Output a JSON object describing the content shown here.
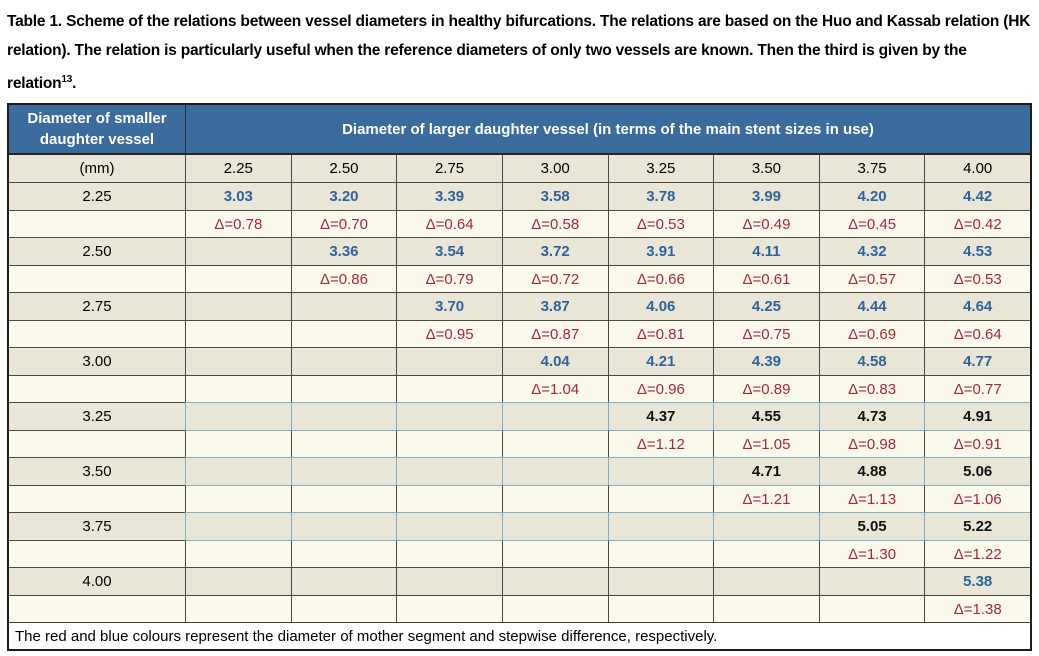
{
  "caption": {
    "prefix": "Table 1. Scheme of the relations between vessel diameters in healthy bifurcations. The relations are based on the Huo and Kassab relation (HK relation). The relation is particularly useful when the reference diameters of only two vessels are known. Then the third is given by the relation",
    "superscript": "13",
    "suffix": "."
  },
  "table": {
    "corner_header": "Diameter of smaller daughter vessel",
    "main_header": "Diameter of larger daughter vessel (in terms of the main stent sizes in use)",
    "unit_label": "(mm)",
    "column_headers": [
      "2.25",
      "2.50",
      "2.75",
      "3.00",
      "3.25",
      "3.50",
      "3.75",
      "4.00"
    ],
    "rows": [
      {
        "label": "2.25",
        "start_index": 0,
        "value_style": "blue",
        "border_style": "dark",
        "values": [
          "3.03",
          "3.20",
          "3.39",
          "3.58",
          "3.78",
          "3.99",
          "4.20",
          "4.42"
        ],
        "deltas": [
          "Δ=0.78",
          "Δ=0.70",
          "Δ=0.64",
          "Δ=0.58",
          "Δ=0.53",
          "Δ=0.49",
          "Δ=0.45",
          "Δ=0.42"
        ]
      },
      {
        "label": "2.50",
        "start_index": 1,
        "value_style": "blue",
        "border_style": "dark",
        "values": [
          "3.36",
          "3.54",
          "3.72",
          "3.91",
          "4.11",
          "4.32",
          "4.53"
        ],
        "deltas": [
          "Δ=0.86",
          "Δ=0.79",
          "Δ=0.72",
          "Δ=0.66",
          "Δ=0.61",
          "Δ=0.57",
          "Δ=0.53"
        ]
      },
      {
        "label": "2.75",
        "start_index": 2,
        "value_style": "blue",
        "border_style": "dark",
        "values": [
          "3.70",
          "3.87",
          "4.06",
          "4.25",
          "4.44",
          "4.64"
        ],
        "deltas": [
          "Δ=0.95",
          "Δ=0.87",
          "Δ=0.81",
          "Δ=0.75",
          "Δ=0.69",
          "Δ=0.64"
        ]
      },
      {
        "label": "3.00",
        "start_index": 3,
        "value_style": "blue",
        "border_style": "dark",
        "values": [
          "4.04",
          "4.21",
          "4.39",
          "4.58",
          "4.77"
        ],
        "deltas": [
          "Δ=1.04",
          "Δ=0.96",
          "Δ=0.89",
          "Δ=0.83",
          "Δ=0.77"
        ]
      },
      {
        "label": "3.25",
        "start_index": 4,
        "value_style": "black",
        "border_style": "light-blue",
        "values": [
          "4.37",
          "4.55",
          "4.73",
          "4.91"
        ],
        "deltas": [
          "Δ=1.12",
          "Δ=1.05",
          "Δ=0.98",
          "Δ=0.91"
        ]
      },
      {
        "label": "3.50",
        "start_index": 5,
        "value_style": "black",
        "border_style": "light-blue",
        "values": [
          "4.71",
          "4.88",
          "5.06"
        ],
        "deltas": [
          "Δ=1.21",
          "Δ=1.13",
          "Δ=1.06"
        ]
      },
      {
        "label": "3.75",
        "start_index": 6,
        "value_style": "black",
        "border_style": "light-blue",
        "values": [
          "5.05",
          "5.22"
        ],
        "deltas": [
          "Δ=1.30",
          "Δ=1.22"
        ]
      },
      {
        "label": "4.00",
        "start_index": 7,
        "value_style": "blue",
        "border_style": "dark",
        "values": [
          "5.38"
        ],
        "deltas": [
          "Δ=1.38"
        ]
      }
    ],
    "footnote": "The red and blue colours represent the diameter of mother segment and stepwise difference, respectively."
  },
  "colors": {
    "header_blue": "#3c6b9d",
    "value_row_bg": "#e9e6d7",
    "delta_row_bg": "#fbf9ec",
    "blue_value_text": "#2f639c",
    "red_delta_text": "#a32936",
    "black_value_text": "#111111",
    "grid_border": "#4a4a42",
    "light_blue_border": "#7db2c5"
  }
}
